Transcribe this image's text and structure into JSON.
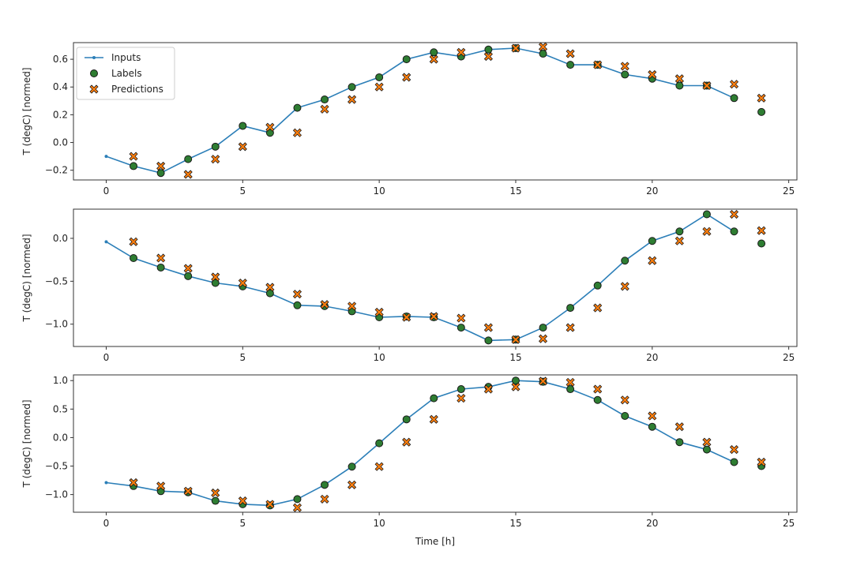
{
  "chart_data": {
    "type": "line",
    "xlabel": "Time [h]",
    "legend": {
      "placement": "top-left",
      "entries": [
        "Inputs",
        "Labels",
        "Predictions"
      ]
    },
    "colors": {
      "inputs": "#2c7fb8",
      "labels_fill": "#2e7d32",
      "predictions_fill": "#ff7f0e",
      "marker_edge": "#1a1a1a"
    },
    "panels": [
      {
        "ylabel": "T (degC) [normed]",
        "xlim": [
          -1.2,
          25.3
        ],
        "ylim": [
          -0.27,
          0.72
        ],
        "xticks": [
          0,
          5,
          10,
          15,
          20,
          25
        ],
        "yticks": [
          -0.2,
          0.0,
          0.2,
          0.4,
          0.6
        ],
        "inputs": {
          "x": [
            0,
            1,
            2,
            3,
            4,
            5,
            6,
            7,
            8,
            9,
            10,
            11,
            12,
            13,
            14,
            15,
            16,
            17,
            18,
            19,
            20,
            21,
            22,
            23
          ],
          "y": [
            -0.1,
            -0.17,
            -0.22,
            -0.12,
            -0.03,
            0.12,
            0.07,
            0.25,
            0.31,
            0.4,
            0.47,
            0.6,
            0.65,
            0.62,
            0.67,
            0.68,
            0.64,
            0.56,
            0.56,
            0.49,
            0.46,
            0.41,
            0.41,
            0.32
          ]
        },
        "labels": {
          "x": [
            1,
            2,
            3,
            4,
            5,
            6,
            7,
            8,
            9,
            10,
            11,
            12,
            13,
            14,
            15,
            16,
            17,
            18,
            19,
            20,
            21,
            22,
            23,
            24
          ],
          "y": [
            -0.17,
            -0.22,
            -0.12,
            -0.03,
            0.12,
            0.07,
            0.25,
            0.31,
            0.4,
            0.47,
            0.6,
            0.65,
            0.62,
            0.67,
            0.68,
            0.64,
            0.56,
            0.56,
            0.49,
            0.46,
            0.41,
            0.41,
            0.32,
            0.22
          ]
        },
        "predictions": {
          "x": [
            1,
            2,
            3,
            4,
            5,
            6,
            7,
            8,
            9,
            10,
            11,
            12,
            13,
            14,
            15,
            16,
            17,
            18,
            19,
            20,
            21,
            22,
            23,
            24
          ],
          "y": [
            -0.1,
            -0.17,
            -0.23,
            -0.12,
            -0.03,
            0.11,
            0.07,
            0.24,
            0.31,
            0.4,
            0.47,
            0.6,
            0.65,
            0.62,
            0.68,
            0.69,
            0.64,
            0.56,
            0.55,
            0.49,
            0.46,
            0.41,
            0.42,
            0.32
          ]
        }
      },
      {
        "ylabel": "T (degC) [normed]",
        "xlim": [
          -1.2,
          25.3
        ],
        "ylim": [
          -1.26,
          0.34
        ],
        "xticks": [
          0,
          5,
          10,
          15,
          20,
          25
        ],
        "yticks": [
          -1.0,
          -0.5,
          0.0
        ],
        "inputs": {
          "x": [
            0,
            1,
            2,
            3,
            4,
            5,
            6,
            7,
            8,
            9,
            10,
            11,
            12,
            13,
            14,
            15,
            16,
            17,
            18,
            19,
            20,
            21,
            22,
            23
          ],
          "y": [
            -0.04,
            -0.23,
            -0.34,
            -0.44,
            -0.52,
            -0.56,
            -0.64,
            -0.78,
            -0.79,
            -0.85,
            -0.92,
            -0.91,
            -0.92,
            -1.04,
            -1.19,
            -1.18,
            -1.04,
            -0.81,
            -0.55,
            -0.26,
            -0.03,
            0.08,
            0.28,
            0.08
          ]
        },
        "labels": {
          "x": [
            1,
            2,
            3,
            4,
            5,
            6,
            7,
            8,
            9,
            10,
            11,
            12,
            13,
            14,
            15,
            16,
            17,
            18,
            19,
            20,
            21,
            22,
            23,
            24
          ],
          "y": [
            -0.23,
            -0.34,
            -0.44,
            -0.52,
            -0.56,
            -0.64,
            -0.78,
            -0.79,
            -0.85,
            -0.92,
            -0.91,
            -0.92,
            -1.04,
            -1.19,
            -1.18,
            -1.04,
            -0.81,
            -0.55,
            -0.26,
            -0.03,
            0.08,
            0.28,
            0.08,
            -0.06
          ]
        },
        "predictions": {
          "x": [
            1,
            2,
            3,
            4,
            5,
            6,
            7,
            8,
            9,
            10,
            11,
            12,
            13,
            14,
            15,
            16,
            17,
            18,
            19,
            20,
            21,
            22,
            23,
            24
          ],
          "y": [
            -0.04,
            -0.23,
            -0.35,
            -0.45,
            -0.52,
            -0.57,
            -0.65,
            -0.77,
            -0.79,
            -0.86,
            -0.92,
            -0.91,
            -0.93,
            -1.04,
            -1.18,
            -1.17,
            -1.04,
            -0.81,
            -0.56,
            -0.26,
            -0.03,
            0.08,
            0.28,
            0.09
          ]
        }
      },
      {
        "ylabel": "T (degC) [normed]",
        "xlim": [
          -1.2,
          25.3
        ],
        "ylim": [
          -1.31,
          1.1
        ],
        "xticks": [
          0,
          5,
          10,
          15,
          20,
          25
        ],
        "yticks": [
          -1.0,
          -0.5,
          0.0,
          0.5,
          1.0
        ],
        "inputs": {
          "x": [
            0,
            1,
            2,
            3,
            4,
            5,
            6,
            7,
            8,
            9,
            10,
            11,
            12,
            13,
            14,
            15,
            16,
            17,
            18,
            19,
            20,
            21,
            22,
            23
          ],
          "y": [
            -0.79,
            -0.85,
            -0.94,
            -0.96,
            -1.11,
            -1.17,
            -1.19,
            -1.08,
            -0.83,
            -0.51,
            -0.1,
            0.32,
            0.69,
            0.85,
            0.89,
            1.0,
            0.98,
            0.85,
            0.66,
            0.38,
            0.19,
            -0.08,
            -0.21,
            -0.43
          ]
        },
        "labels": {
          "x": [
            1,
            2,
            3,
            4,
            5,
            6,
            7,
            8,
            9,
            10,
            11,
            12,
            13,
            14,
            15,
            16,
            17,
            18,
            19,
            20,
            21,
            22,
            23,
            24
          ],
          "y": [
            -0.85,
            -0.94,
            -0.96,
            -1.11,
            -1.17,
            -1.19,
            -1.08,
            -0.83,
            -0.51,
            -0.1,
            0.32,
            0.69,
            0.85,
            0.89,
            1.0,
            0.98,
            0.85,
            0.66,
            0.38,
            0.19,
            -0.08,
            -0.21,
            -0.43,
            -0.5
          ]
        },
        "predictions": {
          "x": [
            1,
            2,
            3,
            4,
            5,
            6,
            7,
            8,
            9,
            10,
            11,
            12,
            13,
            14,
            15,
            16,
            17,
            18,
            19,
            20,
            21,
            22,
            23,
            24
          ],
          "y": [
            -0.79,
            -0.85,
            -0.94,
            -0.97,
            -1.11,
            -1.17,
            -1.23,
            -1.08,
            -0.83,
            -0.51,
            -0.08,
            0.32,
            0.69,
            0.85,
            0.89,
            0.99,
            0.97,
            0.85,
            0.66,
            0.38,
            0.19,
            -0.08,
            -0.21,
            -0.43
          ]
        }
      }
    ]
  }
}
